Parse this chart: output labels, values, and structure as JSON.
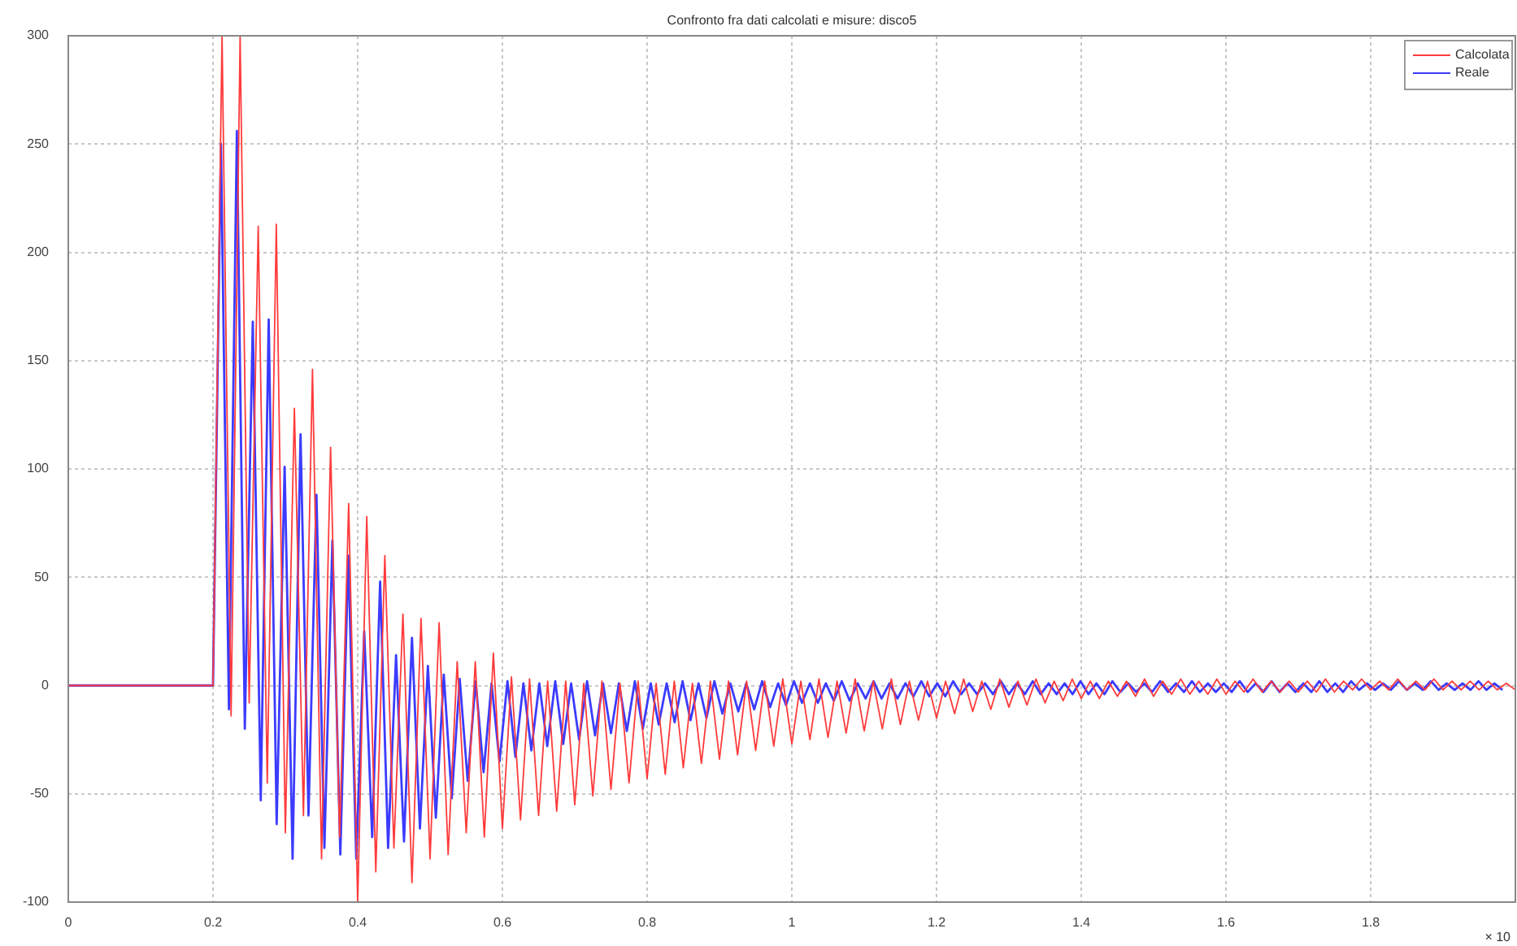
{
  "chart_data": {
    "type": "line",
    "title": "Confronto fra dati calcolati e misure: disco5",
    "xlim": [
      0,
      2
    ],
    "xticks": [
      0,
      0.2,
      0.4,
      0.6,
      0.8,
      1,
      1.2,
      1.4,
      1.6,
      1.8
    ],
    "ylim": [
      -100,
      300
    ],
    "yticks": [
      -100,
      -50,
      0,
      50,
      100,
      150,
      200,
      250,
      300
    ],
    "grid": true,
    "legend": "top right",
    "marker": "none",
    "line_style": "solid",
    "annotations": [
      "× 10"
    ],
    "series": [
      {
        "name": "Calcolata",
        "color": "#ff3b3b",
        "x": [
          0,
          0.2,
          0.2125,
          0.225,
          0.2375,
          0.25,
          0.2625,
          0.275,
          0.2875,
          0.3,
          0.3125,
          0.325,
          0.3375,
          0.35,
          0.3625,
          0.375,
          0.3875,
          0.4,
          0.4125,
          0.425,
          0.4375,
          0.45,
          0.4625,
          0.475,
          0.4875,
          0.5,
          0.5125,
          0.525,
          0.5375,
          0.55,
          0.5625,
          0.575,
          0.5875,
          0.6,
          0.6125,
          0.625,
          0.6375,
          0.65,
          0.6625,
          0.675,
          0.6875,
          0.7,
          0.7125,
          0.725,
          0.7375,
          0.75,
          0.7625,
          0.775,
          0.7875,
          0.8,
          0.8125,
          0.825,
          0.8375,
          0.85,
          0.8625,
          0.875,
          0.8875,
          0.9,
          0.9125,
          0.925,
          0.9375,
          0.95,
          0.9625,
          0.975,
          0.9875,
          1,
          1.0125,
          1.025,
          1.0375,
          1.05,
          1.0625,
          1.075,
          1.0875,
          1.1,
          1.1125,
          1.125,
          1.1375,
          1.15,
          1.1625,
          1.175,
          1.1875,
          1.2,
          1.2125,
          1.225,
          1.2375,
          1.25,
          1.2625,
          1.275,
          1.2875,
          1.3,
          1.3125,
          1.325,
          1.3375,
          1.35,
          1.3625,
          1.375,
          1.3875,
          1.4,
          1.4125,
          1.425,
          1.4375,
          1.45,
          1.4625,
          1.475,
          1.4875,
          1.5,
          1.5125,
          1.525,
          1.5375,
          1.55,
          1.5625,
          1.575,
          1.5875,
          1.6,
          1.6125,
          1.625,
          1.6375,
          1.65,
          1.6625,
          1.675,
          1.6875,
          1.7,
          1.7125,
          1.725,
          1.7375,
          1.75,
          1.7625,
          1.775,
          1.7875,
          1.8,
          1.8125,
          1.825,
          1.8375,
          1.85,
          1.8625,
          1.875,
          1.8875,
          1.9,
          1.9125,
          1.925,
          1.9375,
          1.95,
          1.9625,
          1.975,
          1.9875,
          2
        ],
        "values": [
          0,
          0,
          300,
          -14,
          300,
          -8,
          212,
          -45,
          213,
          -68,
          128,
          -60,
          146,
          -80,
          110,
          -70,
          84,
          -100,
          78,
          -86,
          60,
          -75,
          33,
          -91,
          31,
          -80,
          29,
          -78,
          11,
          -68,
          11,
          -70,
          15,
          -66,
          4,
          -62,
          3,
          -60,
          2,
          -58,
          2,
          -55,
          1,
          -51,
          2,
          -48,
          1,
          -45,
          2,
          -43,
          1,
          -41,
          2,
          -38,
          1,
          -36,
          2,
          -34,
          2,
          -32,
          2,
          -30,
          2,
          -28,
          3,
          -27,
          2,
          -25,
          3,
          -24,
          2,
          -22,
          3,
          -21,
          2,
          -20,
          3,
          -18,
          2,
          -16,
          2,
          -15,
          2,
          -13,
          3,
          -12,
          2,
          -11,
          3,
          -10,
          2,
          -9,
          3,
          -8,
          2,
          -7,
          3,
          -6,
          2,
          -6,
          2,
          -5,
          2,
          -5,
          3,
          -5,
          2,
          -4,
          3,
          -4,
          2,
          -4,
          3,
          -4,
          2,
          -3,
          3,
          -3,
          2,
          -3,
          2,
          -3,
          2,
          -3,
          3,
          -3,
          2,
          -2,
          3,
          -2,
          2,
          -2,
          3,
          -2,
          2,
          -2,
          3,
          -2,
          2,
          -2,
          2,
          -2,
          2,
          -2,
          1,
          -2
        ]
      },
      {
        "name": "Reale",
        "color": "#3b3bff",
        "x": [
          0,
          0.2,
          0.211,
          0.222,
          0.233,
          0.244,
          0.255,
          0.266,
          0.277,
          0.288,
          0.299,
          0.31,
          0.321,
          0.332,
          0.343,
          0.354,
          0.365,
          0.376,
          0.387,
          0.398,
          0.409,
          0.42,
          0.431,
          0.442,
          0.453,
          0.464,
          0.475,
          0.486,
          0.497,
          0.508,
          0.519,
          0.53,
          0.541,
          0.552,
          0.563,
          0.574,
          0.585,
          0.596,
          0.607,
          0.618,
          0.629,
          0.64,
          0.651,
          0.662,
          0.673,
          0.684,
          0.695,
          0.706,
          0.717,
          0.728,
          0.739,
          0.75,
          0.761,
          0.772,
          0.783,
          0.794,
          0.805,
          0.816,
          0.827,
          0.838,
          0.849,
          0.86,
          0.871,
          0.882,
          0.893,
          0.904,
          0.915,
          0.926,
          0.937,
          0.948,
          0.959,
          0.97,
          0.981,
          0.992,
          1.003,
          1.014,
          1.025,
          1.036,
          1.047,
          1.058,
          1.069,
          1.08,
          1.091,
          1.102,
          1.113,
          1.124,
          1.135,
          1.146,
          1.157,
          1.168,
          1.179,
          1.19,
          1.201,
          1.212,
          1.223,
          1.234,
          1.245,
          1.256,
          1.267,
          1.278,
          1.289,
          1.3,
          1.311,
          1.322,
          1.333,
          1.344,
          1.355,
          1.366,
          1.377,
          1.388,
          1.399,
          1.41,
          1.421,
          1.432,
          1.443,
          1.454,
          1.465,
          1.476,
          1.487,
          1.498,
          1.509,
          1.52,
          1.531,
          1.542,
          1.553,
          1.564,
          1.575,
          1.586,
          1.597,
          1.608,
          1.619,
          1.63,
          1.641,
          1.652,
          1.663,
          1.674,
          1.685,
          1.696,
          1.707,
          1.718,
          1.729,
          1.74,
          1.751,
          1.762,
          1.773,
          1.784,
          1.795,
          1.806,
          1.817,
          1.828,
          1.839,
          1.85,
          1.861,
          1.872,
          1.883,
          1.894,
          1.905,
          1.916,
          1.927,
          1.938,
          1.949,
          1.96,
          1.971,
          1.982
        ],
        "values": [
          0,
          0,
          250,
          -11,
          256,
          -20,
          168,
          -53,
          169,
          -64,
          101,
          -80,
          116,
          -60,
          88,
          -75,
          67,
          -78,
          60,
          -80,
          25,
          -70,
          48,
          -75,
          14,
          -72,
          22,
          -66,
          9,
          -61,
          5,
          -52,
          3,
          -44,
          2,
          -40,
          1,
          -35,
          2,
          -33,
          1,
          -30,
          1,
          -28,
          2,
          -27,
          1,
          -25,
          2,
          -23,
          1,
          -22,
          1,
          -21,
          2,
          -20,
          1,
          -18,
          1,
          -17,
          2,
          -16,
          1,
          -15,
          2,
          -13,
          1,
          -12,
          1,
          -11,
          2,
          -10,
          1,
          -9,
          2,
          -8,
          1,
          -8,
          1,
          -7,
          2,
          -7,
          1,
          -6,
          2,
          -6,
          1,
          -6,
          1,
          -5,
          2,
          -5,
          1,
          -5,
          2,
          -4,
          1,
          -4,
          1,
          -4,
          2,
          -4,
          1,
          -4,
          2,
          -4,
          1,
          -4,
          1,
          -4,
          2,
          -4,
          1,
          -4,
          2,
          -3,
          1,
          -3,
          1,
          -3,
          2,
          -3,
          1,
          -3,
          2,
          -3,
          1,
          -3,
          1,
          -3,
          2,
          -3,
          1,
          -3,
          2,
          -3,
          1,
          -3,
          1,
          -3,
          2,
          -3,
          1,
          -3,
          2,
          -2,
          1,
          -2,
          1,
          -2,
          2,
          -2,
          1,
          -2,
          2,
          -2,
          1,
          -2,
          1,
          -2,
          2,
          -2,
          1,
          -2
        ]
      }
    ]
  }
}
